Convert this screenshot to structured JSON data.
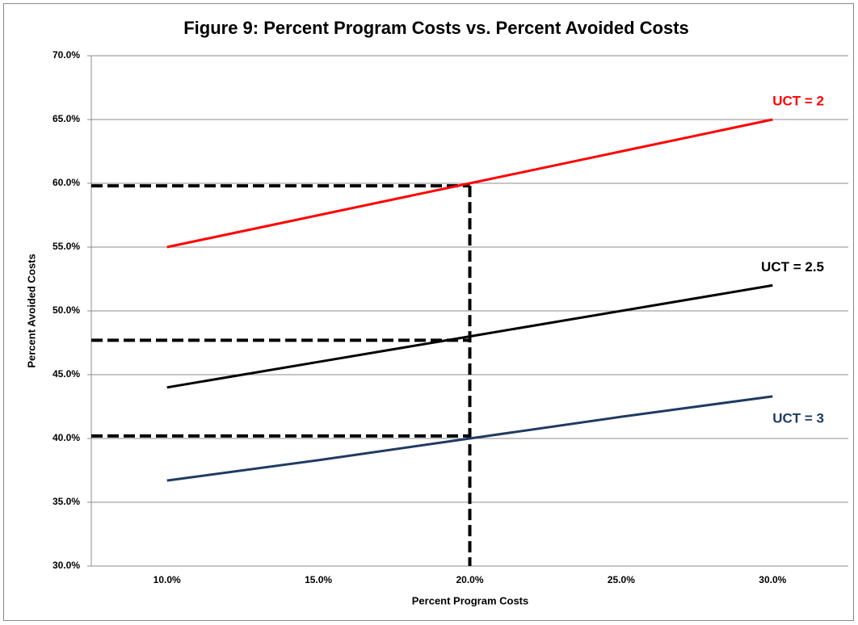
{
  "chart_data": {
    "type": "line",
    "title": "Figure 9:  Percent Program Costs vs. Percent Avoided Costs",
    "x_label": "Percent Program Costs",
    "y_label": "Percent Avoided Costs",
    "x": [
      10,
      15,
      20,
      25,
      30
    ],
    "xlim": [
      7.5,
      32.5
    ],
    "xticks": [
      {
        "value": 10,
        "label": "10.0%"
      },
      {
        "value": 15,
        "label": "15.0%"
      },
      {
        "value": 20,
        "label": "20.0%"
      },
      {
        "value": 25,
        "label": "25.0%"
      },
      {
        "value": 30,
        "label": "30.0%"
      }
    ],
    "ylim": [
      30,
      70
    ],
    "yticks": [
      {
        "value": 30,
        "label": "30.0%"
      },
      {
        "value": 35,
        "label": "35.0%"
      },
      {
        "value": 40,
        "label": "40.0%"
      },
      {
        "value": 45,
        "label": "45.0%"
      },
      {
        "value": 50,
        "label": "50.0%"
      },
      {
        "value": 55,
        "label": "55.0%"
      },
      {
        "value": 60,
        "label": "60.0%"
      },
      {
        "value": 65,
        "label": "65.0%"
      },
      {
        "value": 70,
        "label": "70.0%"
      }
    ],
    "grid": true,
    "series": [
      {
        "name": "UCT = 2",
        "color": "#ff0000",
        "values": [
          55,
          57.5,
          60,
          62.5,
          65
        ]
      },
      {
        "name": "UCT = 2.5",
        "color": "#000000",
        "values": [
          44,
          46,
          48,
          50,
          52
        ]
      },
      {
        "name": "UCT = 3",
        "color": "#1f3b63",
        "values": [
          36.7,
          38.3,
          40,
          41.7,
          43.3
        ]
      }
    ],
    "guides": {
      "color": "#000000",
      "x": 20,
      "y": [
        59.8,
        47.7,
        40.2
      ]
    }
  }
}
